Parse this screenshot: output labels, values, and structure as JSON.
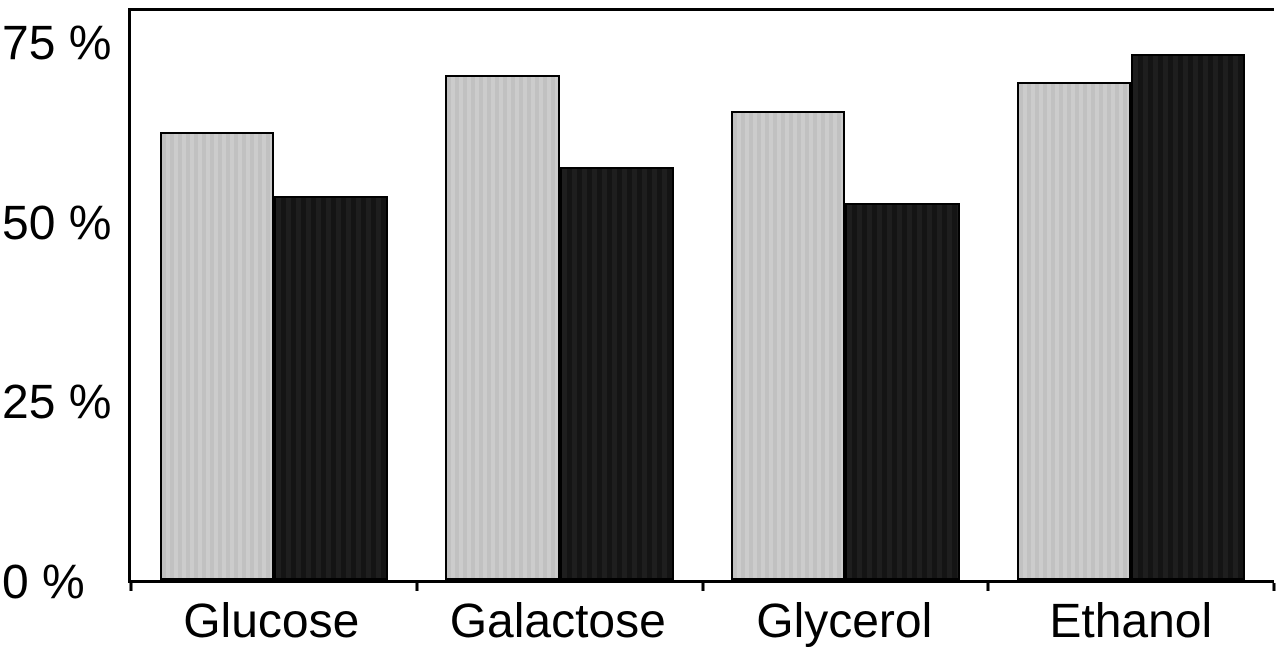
{
  "chart_data": {
    "type": "bar",
    "title": "",
    "xlabel": "",
    "ylabel": "",
    "categories": [
      "Glucose",
      "Galactose",
      "Glycerol",
      "Ethanol"
    ],
    "series": [
      {
        "name": "gray-bars",
        "color": "#c9c9c9",
        "values": [
          63,
          71,
          66,
          70
        ]
      },
      {
        "name": "black-bars",
        "color": "#151515",
        "values": [
          54,
          58,
          53,
          74
        ]
      }
    ],
    "ylim": [
      0,
      80
    ],
    "y_tick_labels": [
      "75 %",
      "50 %",
      "25 %",
      "0 %"
    ],
    "grid": false,
    "legend": "none"
  },
  "y_axis": {
    "ticks": [
      {
        "label": "75 %",
        "value": 75
      },
      {
        "label": "50 %",
        "value": 50
      },
      {
        "label": "25 %",
        "value": 25
      },
      {
        "label": "0 %",
        "value": 0
      }
    ]
  },
  "colors": {
    "axis": "#000000",
    "gray_bar": "#c9c9c9",
    "black_bar": "#151515",
    "background": "#ffffff"
  }
}
